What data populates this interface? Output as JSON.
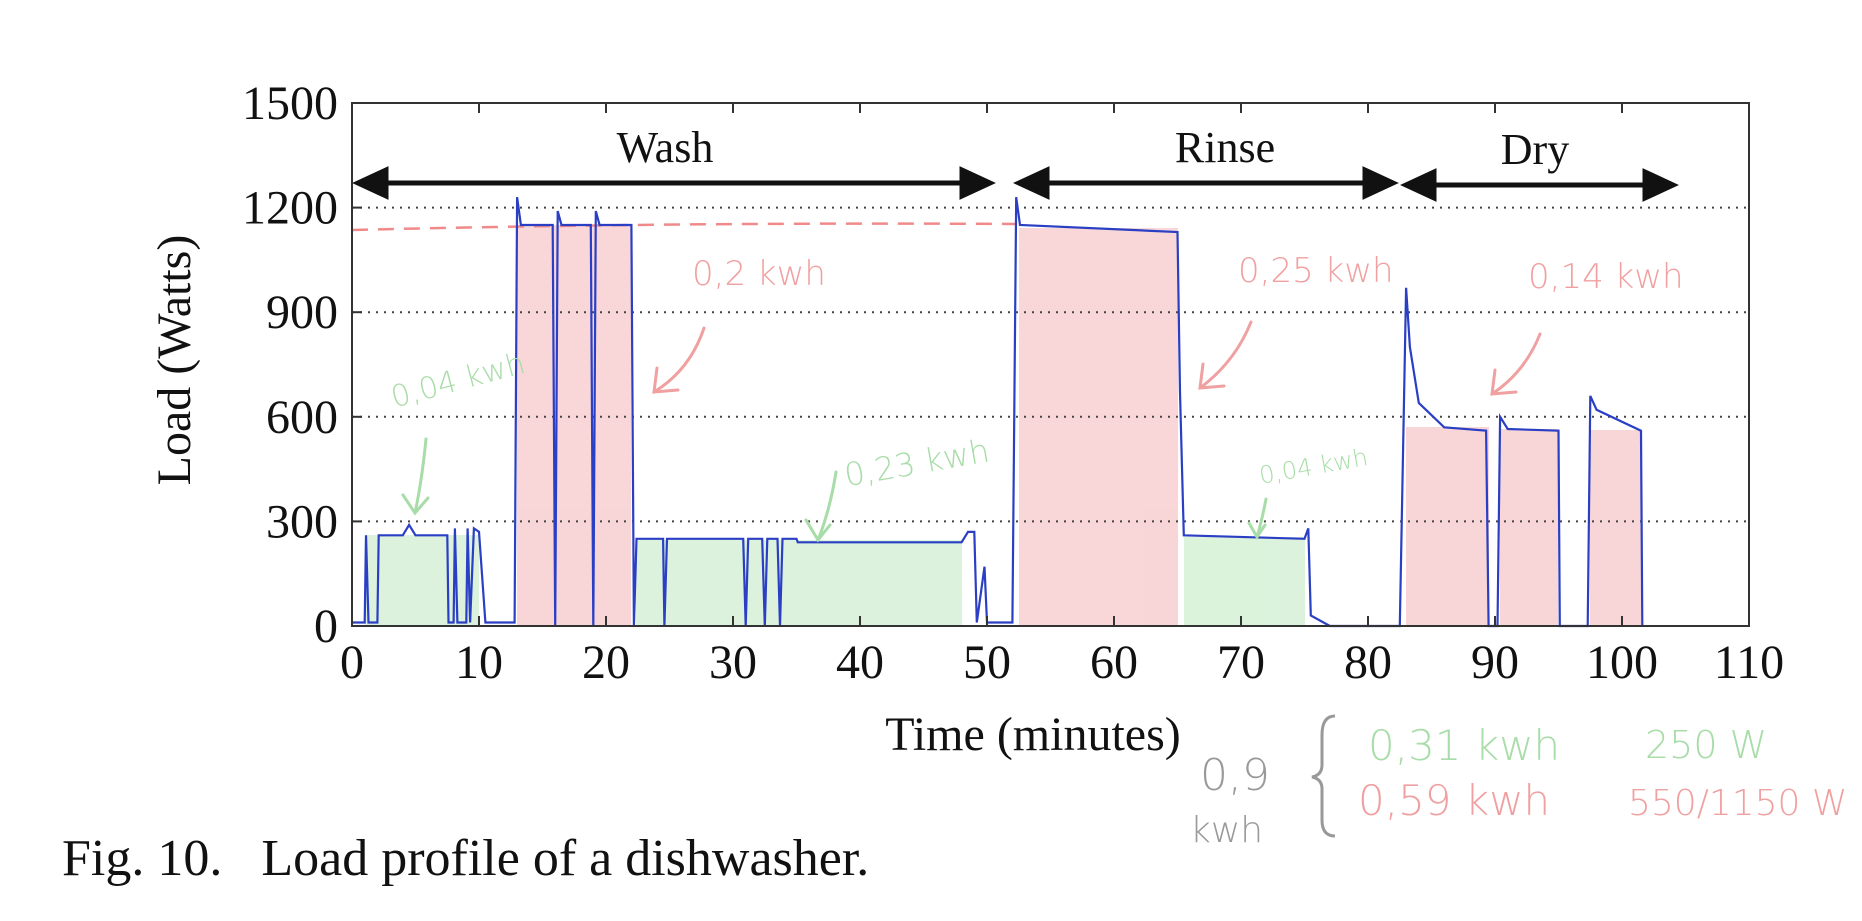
{
  "chart_data": {
    "type": "line",
    "xlabel": "Time (minutes)",
    "ylabel": "Load (Watts)",
    "caption": "Fig. 10.   Load profile of a dishwasher.",
    "phases": [
      "Wash",
      "Rinse",
      "Dry"
    ],
    "annotations": [
      "0,04 kwh",
      "0,2 kwh",
      "0,23 kwh",
      "0,25 kwh",
      "0,04 kwh",
      "0,14 kwh"
    ],
    "summary": {
      "total": "0,9",
      "total_unit": "kwh",
      "green_energy": "0,31 kwh",
      "green_power": "250 W",
      "red_energy": "0,59 kwh",
      "red_power": "550/1150 W"
    },
    "xlim": [
      0,
      110
    ],
    "ylim": [
      0,
      1500
    ],
    "xticks": [
      0,
      10,
      20,
      30,
      40,
      50,
      60,
      70,
      80,
      90,
      100,
      110
    ],
    "yticks": [
      0,
      300,
      600,
      900,
      1200,
      1500
    ],
    "grid": true,
    "x": [
      0,
      1,
      1.1,
      1.3,
      2,
      2.1,
      4,
      4.5,
      5,
      7.5,
      7.6,
      8,
      8.1,
      8.3,
      9,
      9.1,
      9.3,
      9.6,
      10,
      10.5,
      12.8,
      13,
      13.3,
      15.8,
      16,
      16.2,
      16.5,
      18.8,
      19,
      19.2,
      19.5,
      22,
      22.2,
      22.4,
      24.5,
      24.6,
      24.8,
      30.8,
      31,
      31.2,
      32.3,
      32.5,
      32.7,
      33.5,
      33.7,
      33.9,
      35,
      35.1,
      48,
      48.5,
      49,
      49.2,
      49.8,
      50,
      52,
      52.3,
      52.6,
      65,
      65.2,
      65.5,
      75,
      75.3,
      75.5,
      77,
      82.5,
      83,
      83.3,
      84,
      86,
      89.3,
      89.5,
      90.2,
      90.4,
      91,
      95,
      95.1,
      97.3,
      97.5,
      98,
      101.5,
      101.6
    ],
    "series": [
      {
        "name": "Load",
        "color": "#2a3fc4",
        "values": [
          10,
          10,
          260,
          10,
          10,
          260,
          260,
          290,
          260,
          260,
          10,
          10,
          280,
          10,
          10,
          280,
          10,
          280,
          270,
          10,
          10,
          1230,
          1150,
          1150,
          0,
          1190,
          1150,
          1150,
          0,
          1190,
          1150,
          1150,
          0,
          250,
          250,
          0,
          250,
          250,
          0,
          250,
          250,
          0,
          250,
          250,
          0,
          250,
          250,
          240,
          240,
          270,
          270,
          10,
          170,
          10,
          10,
          1230,
          1150,
          1130,
          670,
          260,
          250,
          280,
          30,
          0,
          0,
          970,
          800,
          640,
          570,
          560,
          0,
          0,
          600,
          565,
          560,
          0,
          0,
          660,
          620,
          560,
          0
        ]
      }
    ]
  }
}
